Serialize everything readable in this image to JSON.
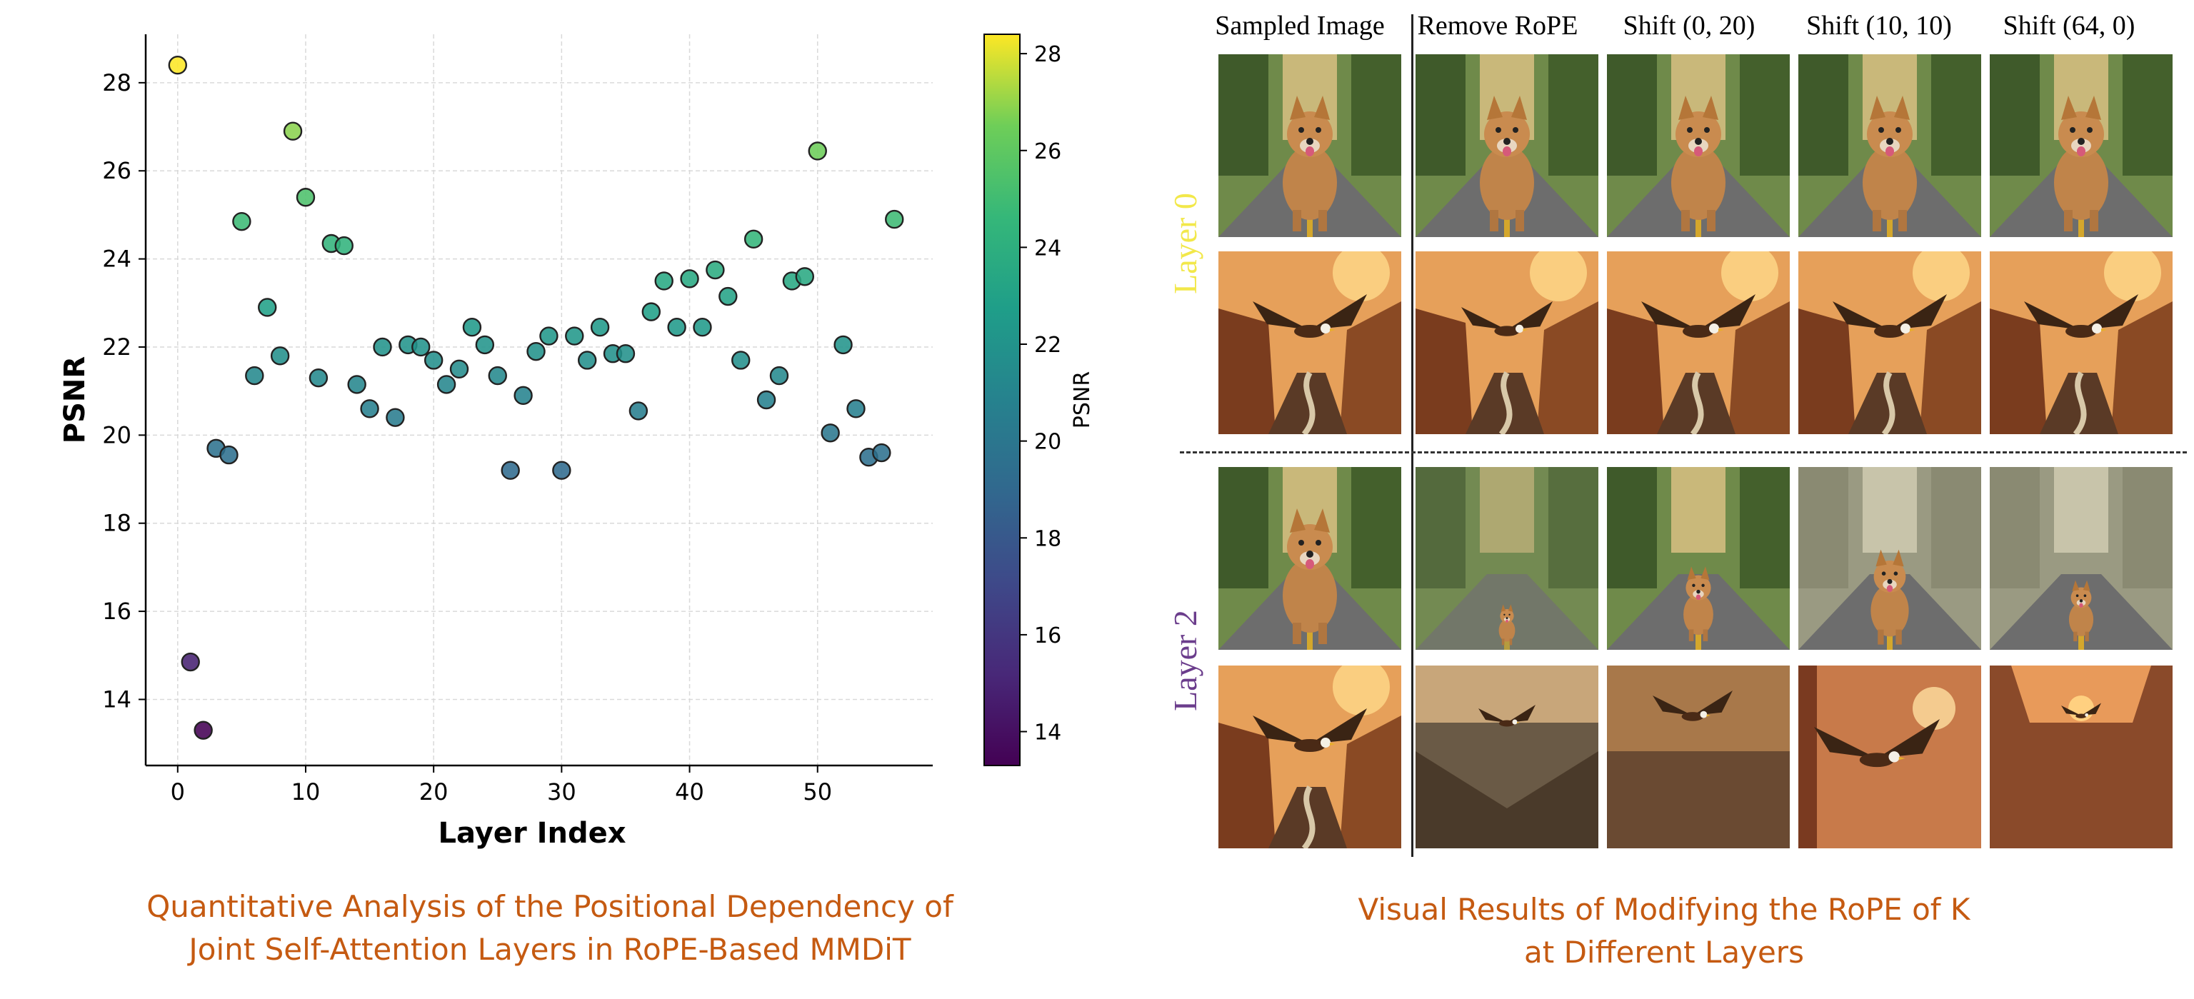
{
  "chart_data": {
    "type": "scatter",
    "xlabel": "Layer Index",
    "ylabel": "PSNR",
    "xlim": [
      -2.5,
      59
    ],
    "ylim": [
      12.5,
      29.1
    ],
    "xticks": [
      0,
      10,
      20,
      30,
      40,
      50
    ],
    "yticks": [
      14,
      16,
      18,
      20,
      22,
      24,
      26,
      28
    ],
    "grid": true,
    "colormap": "viridis",
    "colorbar": {
      "label": "PSNR",
      "range": [
        13.3,
        28.4
      ],
      "ticks": [
        14,
        16,
        18,
        20,
        22,
        24,
        26,
        28
      ]
    },
    "x": [
      0,
      1,
      2,
      3,
      4,
      5,
      6,
      7,
      8,
      9,
      10,
      11,
      12,
      13,
      14,
      15,
      16,
      17,
      18,
      19,
      20,
      21,
      22,
      23,
      24,
      25,
      26,
      27,
      28,
      29,
      30,
      31,
      32,
      33,
      34,
      35,
      36,
      37,
      38,
      39,
      40,
      41,
      42,
      43,
      44,
      45,
      46,
      47,
      48,
      49,
      50,
      51,
      52,
      53,
      54,
      55,
      56
    ],
    "y": [
      28.4,
      14.85,
      13.3,
      19.7,
      19.55,
      24.85,
      21.35,
      22.9,
      21.8,
      26.9,
      25.4,
      21.3,
      24.35,
      24.3,
      21.15,
      20.6,
      22.0,
      20.4,
      22.05,
      22.0,
      21.7,
      21.15,
      21.5,
      22.45,
      22.05,
      21.35,
      19.2,
      20.9,
      21.9,
      22.25,
      19.2,
      22.25,
      21.7,
      22.45,
      21.85,
      21.85,
      20.55,
      22.8,
      23.5,
      22.45,
      23.55,
      22.45,
      23.75,
      23.15,
      21.7,
      24.45,
      20.8,
      21.35,
      23.5,
      23.6,
      26.45,
      20.05,
      22.05,
      20.6,
      19.5,
      19.6,
      24.9
    ]
  },
  "captions": {
    "left": [
      "Quantitative Analysis of the Positional Dependency of",
      "Joint Self-Attention Layers in RoPE-Based MMDiT"
    ],
    "right": [
      "Visual Results of Modifying the RoPE of K",
      "at Different Layers"
    ]
  },
  "grid_panel": {
    "columns": [
      "Sampled Image",
      "Remove RoPE",
      "Shift (0, 20)",
      "Shift (10, 10)",
      "Shift (64, 0)"
    ],
    "layers": [
      {
        "label": "Layer 0",
        "color": "#f2e84a"
      },
      {
        "label": "Layer 2",
        "color": "#6b3d8c"
      }
    ]
  }
}
